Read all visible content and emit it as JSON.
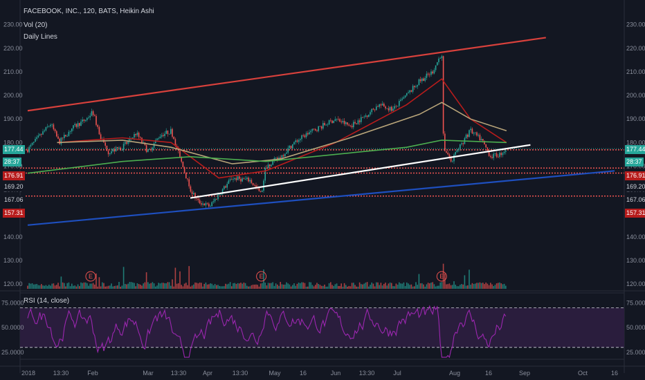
{
  "header": {
    "symbol_line": "FACEBOOK, INC., 120, BATS, Heikin Ashi",
    "vol_line": "Vol (20)",
    "indicator_line": "Daily Lines"
  },
  "rsi_panel": {
    "label": "RSI (14, close)",
    "upper_band": 70,
    "lower_band": 30
  },
  "colors": {
    "background": "#131722",
    "up": "#26a69a",
    "down": "#ef5350",
    "ma_red": "#b71c1c",
    "ma_tan": "#b9a57a",
    "ma_green": "#4caf50",
    "trend_upper": "#d9413c",
    "trend_support": "#ffffff",
    "trend_blue": "#1e4fbf",
    "rsi_line": "#9c27b0",
    "rsi_fill": "#2a1d3d"
  },
  "price_badges": [
    {
      "label": "177.44",
      "color": "#26a69a"
    },
    {
      "label": "28:37",
      "color": "#26a69a"
    },
    {
      "label": "176.91",
      "color": "#b71c1c"
    },
    {
      "label": "169.20",
      "color": "#131722"
    },
    {
      "label": "167.06",
      "color": "#131722"
    },
    {
      "label": "157.31",
      "color": "#b71c1c"
    }
  ],
  "chart_data": {
    "type": "candlestick",
    "title": "FACEBOOK, INC., 120, BATS, Heikin Ashi",
    "price_axis_ticks": [
      "230.00",
      "220.00",
      "210.00",
      "200.00",
      "190.00",
      "180.00",
      "170.00",
      "160.00",
      "150.00",
      "140.00",
      "130.00",
      "120.00"
    ],
    "price_range": [
      118,
      234
    ],
    "time_axis_labels": [
      "2018",
      "13:30",
      "Feb",
      "Mar",
      "13:30",
      "Apr",
      "13:30",
      "May",
      "16",
      "Jun",
      "13:30",
      "Jul",
      "Aug",
      "16",
      "Sep",
      "Oct",
      "16"
    ],
    "price_path": [
      {
        "x": "2018",
        "y": 177
      },
      {
        "x": "Jan 8",
        "y": 184
      },
      {
        "x": "Jan 12",
        "y": 188
      },
      {
        "x": "Jan 16",
        "y": 180
      },
      {
        "x": "Jan 22",
        "y": 186
      },
      {
        "x": "Jan 29",
        "y": 190
      },
      {
        "x": "Feb 1",
        "y": 193
      },
      {
        "x": "Feb 5",
        "y": 182
      },
      {
        "x": "Feb 9",
        "y": 176
      },
      {
        "x": "Feb 16",
        "y": 178
      },
      {
        "x": "Feb 23",
        "y": 184
      },
      {
        "x": "Mar 1",
        "y": 176
      },
      {
        "x": "Mar 7",
        "y": 183
      },
      {
        "x": "Mar 13",
        "y": 185
      },
      {
        "x": "Mar 19",
        "y": 170
      },
      {
        "x": "Mar 23",
        "y": 160
      },
      {
        "x": "Mar 27",
        "y": 155
      },
      {
        "x": "Apr 2",
        "y": 153
      },
      {
        "x": "Apr 6",
        "y": 158
      },
      {
        "x": "Apr 12",
        "y": 165
      },
      {
        "x": "Apr 20",
        "y": 164
      },
      {
        "x": "Apr 25",
        "y": 158
      },
      {
        "x": "Apr 27",
        "y": 170
      },
      {
        "x": "May 4",
        "y": 174
      },
      {
        "x": "May 11",
        "y": 180
      },
      {
        "x": "May 18",
        "y": 184
      },
      {
        "x": "May 25",
        "y": 187
      },
      {
        "x": "Jun 1",
        "y": 190
      },
      {
        "x": "Jun 8",
        "y": 187
      },
      {
        "x": "Jun 15",
        "y": 191
      },
      {
        "x": "Jun 22",
        "y": 196
      },
      {
        "x": "Jun 29",
        "y": 194
      },
      {
        "x": "Jul 6",
        "y": 200
      },
      {
        "x": "Jul 13",
        "y": 206
      },
      {
        "x": "Jul 20",
        "y": 210
      },
      {
        "x": "Jul 25",
        "y": 218
      },
      {
        "x": "Jul 26",
        "y": 178
      },
      {
        "x": "Jul 30",
        "y": 172
      },
      {
        "x": "Aug 3",
        "y": 178
      },
      {
        "x": "Aug 8",
        "y": 185
      },
      {
        "x": "Aug 13",
        "y": 181
      },
      {
        "x": "Aug 17",
        "y": 174
      },
      {
        "x": "Aug 21",
        "y": 175
      },
      {
        "x": "Aug 24",
        "y": 177.44
      }
    ],
    "moving_averages": [
      {
        "name": "",
        "color": "#b71c1c",
        "points": [
          {
            "x": "Jan 15",
            "y": 180
          },
          {
            "x": "Feb 16",
            "y": 182
          },
          {
            "x": "Mar 13",
            "y": 180
          },
          {
            "x": "Apr 6",
            "y": 165
          },
          {
            "x": "Apr 27",
            "y": 168
          },
          {
            "x": "Jun 1",
            "y": 180
          },
          {
            "x": "Jul 6",
            "y": 196
          },
          {
            "x": "Jul 25",
            "y": 207
          },
          {
            "x": "Aug 8",
            "y": 190
          },
          {
            "x": "Aug 24",
            "y": 180
          }
        ]
      },
      {
        "name": "",
        "color": "#b9a57a",
        "points": [
          {
            "x": "Jan 15",
            "y": 180
          },
          {
            "x": "Feb 16",
            "y": 181
          },
          {
            "x": "Mar 13",
            "y": 178
          },
          {
            "x": "Apr 12",
            "y": 171
          },
          {
            "x": "May 4",
            "y": 173
          },
          {
            "x": "Jun 8",
            "y": 182
          },
          {
            "x": "Jul 13",
            "y": 192
          },
          {
            "x": "Jul 25",
            "y": 197
          },
          {
            "x": "Aug 8",
            "y": 190
          },
          {
            "x": "Aug 24",
            "y": 185
          }
        ]
      },
      {
        "name": "",
        "color": "#4caf50",
        "points": [
          {
            "x": "2018",
            "y": 167
          },
          {
            "x": "Feb 16",
            "y": 172
          },
          {
            "x": "Mar 23",
            "y": 174
          },
          {
            "x": "Apr 27",
            "y": 172
          },
          {
            "x": "Jun 1",
            "y": 175
          },
          {
            "x": "Jul 6",
            "y": 178
          },
          {
            "x": "Jul 25",
            "y": 181
          },
          {
            "x": "Aug 24",
            "y": 180
          }
        ]
      }
    ],
    "trend_lines": [
      {
        "name": "",
        "color": "#d9413c",
        "from": {
          "x": "2018",
          "y": 193.5
        },
        "to": {
          "x": "Sep 12",
          "y": 224.5
        }
      },
      {
        "name": "",
        "color": "#ffffff",
        "from": {
          "x": "Mar 23",
          "y": 156.5
        },
        "to": {
          "x": "Sep 4",
          "y": 179
        }
      },
      {
        "name": "",
        "color": "#1e4fbf",
        "from": {
          "x": "2018",
          "y": 145
        },
        "to": {
          "x": "Oct 16",
          "y": 168
        }
      }
    ],
    "horizontal_levels": [
      176.91,
      169.2,
      167.06,
      157.31
    ],
    "last_price": 177.44,
    "event_markers": [
      {
        "label": "E",
        "x": "Jan 31"
      },
      {
        "label": "E",
        "x": "Apr 25"
      },
      {
        "label": "E",
        "x": "Jul 25"
      }
    ],
    "volume": {
      "name": "Vol (20)"
    },
    "rsi": {
      "name": "RSI (14, close)",
      "axis_ticks": [
        "75.0000",
        "50.0000",
        "25.0000"
      ],
      "range": [
        18,
        85
      ],
      "bands": [
        30,
        70
      ]
    }
  }
}
